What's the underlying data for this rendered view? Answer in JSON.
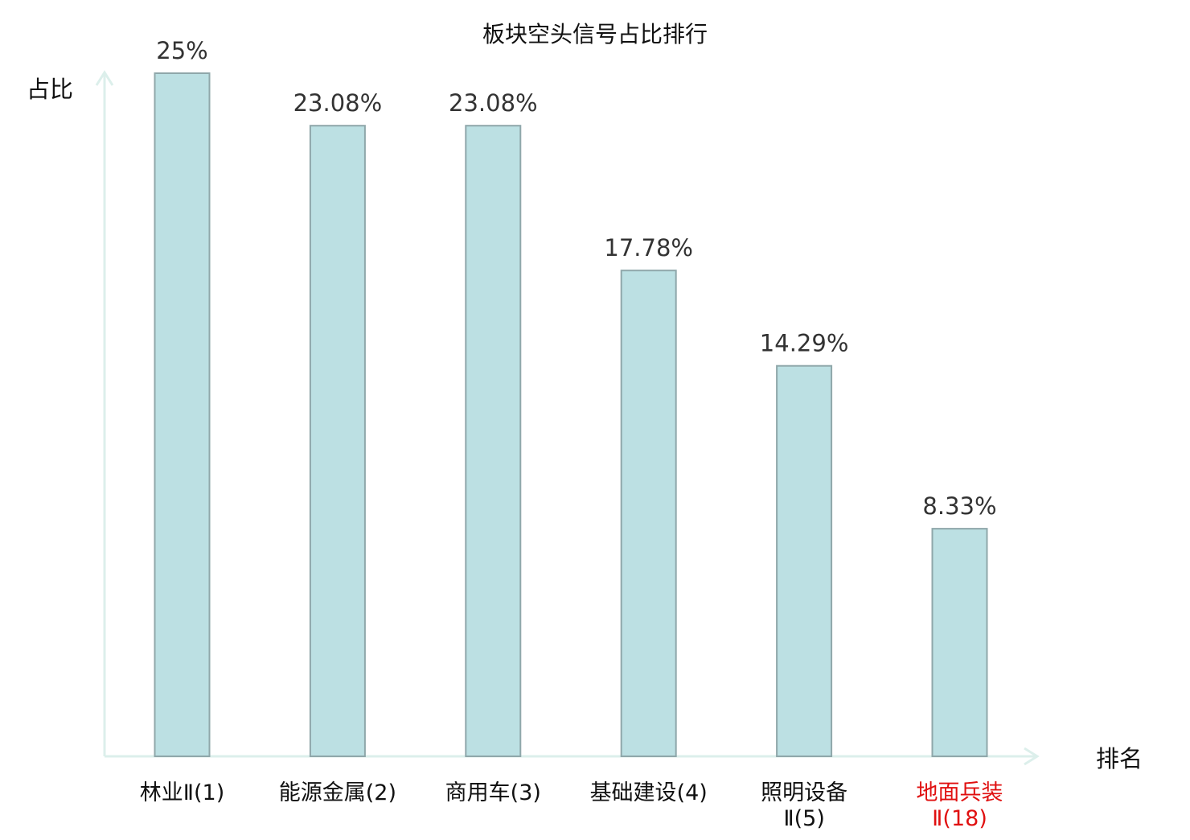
{
  "chart_data": {
    "type": "bar",
    "title": "板块空头信号占比排行",
    "ylabel": "占比",
    "xlabel": "排名",
    "categories": [
      {
        "name": "林业Ⅱ",
        "rank": "(1)",
        "highlight": false
      },
      {
        "name": "能源金属",
        "rank": "(2)",
        "highlight": false
      },
      {
        "name": "商用车",
        "rank": "(3)",
        "highlight": false
      },
      {
        "name": "基础建设",
        "rank": "(4)",
        "highlight": false
      },
      {
        "name": "照明设备Ⅱ",
        "rank": "(5)",
        "highlight": false
      },
      {
        "name": "地面兵装Ⅱ",
        "rank": "(18)",
        "highlight": true
      }
    ],
    "values": [
      25,
      23.08,
      23.08,
      17.78,
      14.29,
      8.33
    ],
    "value_labels": [
      "25%",
      "23.08%",
      "23.08%",
      "17.78%",
      "14.29%",
      "8.33%"
    ],
    "ylim": [
      0,
      25
    ],
    "grid": false,
    "legend": "none"
  },
  "colors": {
    "bar_fill": "#bce0e3",
    "bar_stroke": "#8fa7aa",
    "axis": "#dcefeb",
    "text": "#333333",
    "label_text": "#111111",
    "highlight": "#e01010"
  }
}
